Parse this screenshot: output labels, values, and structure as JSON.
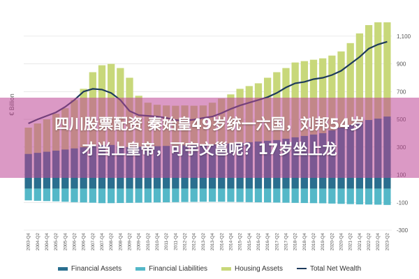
{
  "chart_data": {
    "type": "bar",
    "ylabel": "€ Billion",
    "yticks": [
      -300,
      -100,
      100,
      300,
      500,
      700,
      900,
      1100
    ],
    "ylim": [
      -300,
      1200
    ],
    "grid": true,
    "legend_placement": "bottom",
    "x": [
      "2003-Q4",
      "2004-Q2",
      "2004-Q4",
      "2005-Q2",
      "2005-Q4",
      "2006-Q2",
      "2006-Q4",
      "2007-Q2",
      "2007-Q4",
      "2008-Q2",
      "2008-Q4",
      "2009-Q2",
      "2009-Q4",
      "2010-Q2",
      "2010-Q4",
      "2011-Q2",
      "2011-Q4",
      "2012-Q2",
      "2012-Q4",
      "2013-Q2",
      "2013-Q4",
      "2014-Q2",
      "2014-Q4",
      "2015-Q2",
      "2015-Q4",
      "2016-Q2",
      "2016-Q4",
      "2017-Q2",
      "2017-Q4",
      "2018-Q2",
      "2018-Q4",
      "2019-Q2",
      "2019-Q4",
      "2020-Q2",
      "2020-Q4",
      "2021-Q2",
      "2021-Q4",
      "2022-Q2",
      "2022-Q4",
      "2023-Q2"
    ],
    "series": [
      {
        "name": "Financial Assets",
        "color": "#2a6f8f",
        "values": [
          250,
          258,
          266,
          274,
          282,
          290,
          298,
          306,
          314,
          315,
          305,
          300,
          302,
          304,
          306,
          308,
          310,
          312,
          314,
          316,
          318,
          320,
          325,
          330,
          335,
          340,
          345,
          350,
          360,
          370,
          380,
          390,
          400,
          420,
          440,
          460,
          480,
          495,
          505,
          520
        ]
      },
      {
        "name": "Financial Liabilities",
        "color": "#54b8c8",
        "values": [
          -85,
          -88,
          -90,
          -92,
          -95,
          -98,
          -100,
          -102,
          -105,
          -105,
          -104,
          -103,
          -102,
          -101,
          -100,
          -99,
          -98,
          -97,
          -96,
          -95,
          -95,
          -95,
          -96,
          -97,
          -98,
          -99,
          -100,
          -101,
          -102,
          -103,
          -104,
          -105,
          -106,
          -108,
          -110,
          -112,
          -114,
          -115,
          -116,
          -118
        ]
      },
      {
        "name": "Housing Assets",
        "color": "#c8d87a",
        "values": [
          440,
          470,
          500,
          540,
          580,
          640,
          720,
          840,
          890,
          900,
          870,
          800,
          670,
          620,
          605,
          600,
          598,
          600,
          598,
          600,
          620,
          650,
          680,
          720,
          740,
          760,
          800,
          840,
          870,
          910,
          920,
          930,
          940,
          960,
          990,
          1050,
          1120,
          1180,
          1200,
          1200
        ]
      },
      {
        "name": "Total Net Wealth",
        "color": "#1d3a5c",
        "values": [
          470,
          500,
          525,
          550,
          590,
          640,
          700,
          720,
          715,
          690,
          640,
          560,
          530,
          525,
          520,
          510,
          495,
          490,
          498,
          510,
          520,
          545,
          575,
          600,
          620,
          640,
          660,
          690,
          730,
          760,
          770,
          790,
          800,
          820,
          850,
          900,
          950,
          1010,
          1040,
          1060
        ]
      }
    ]
  },
  "headline": {
    "line1": "四川股票配资 秦始皇49岁统一六国，刘邦54岁",
    "line2": "才当上皇帝，可宇文邕呢？17岁坐上龙"
  }
}
